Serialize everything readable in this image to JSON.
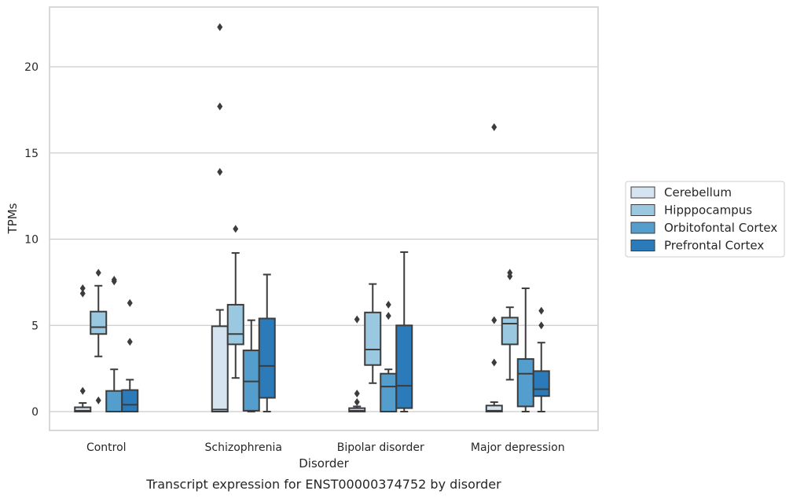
{
  "chart_data": {
    "type": "boxplot",
    "caption": "Transcript expression for ENST00000374752 by disorder",
    "xlabel": "Disorder",
    "ylabel": "TPMs",
    "ylim": [
      -1.1,
      23.5
    ],
    "yticks": [
      0,
      5,
      10,
      15,
      20
    ],
    "grid": "horizontal",
    "legend_position": "right",
    "categories": [
      "Control",
      "Schizophrenia",
      "Bipolar disorder",
      "Major depression"
    ],
    "series": [
      {
        "name": "Cerebellum",
        "color": "#d6e4f2",
        "boxes": [
          {
            "q1": 0.0,
            "median": 0.05,
            "q3": 0.25,
            "whisker_low": 0.0,
            "whisker_high": 0.5,
            "outliers": [
              1.2,
              6.85,
              7.15
            ]
          },
          {
            "q1": 0.0,
            "median": 0.12,
            "q3": 4.95,
            "whisker_low": 0.0,
            "whisker_high": 5.9,
            "outliers": [
              13.9,
              17.7,
              22.3
            ]
          },
          {
            "q1": 0.0,
            "median": 0.05,
            "q3": 0.2,
            "whisker_low": 0.0,
            "whisker_high": 0.3,
            "outliers": [
              0.55,
              1.05,
              5.35
            ]
          },
          {
            "q1": 0.0,
            "median": 0.05,
            "q3": 0.35,
            "whisker_low": 0.0,
            "whisker_high": 0.55,
            "outliers": [
              2.85,
              5.3,
              16.5
            ]
          }
        ]
      },
      {
        "name": "Hipppocampus",
        "color": "#9ac8e0",
        "boxes": [
          {
            "q1": 4.5,
            "median": 4.9,
            "q3": 5.8,
            "whisker_low": 3.2,
            "whisker_high": 7.3,
            "outliers": [
              0.65,
              8.05
            ]
          },
          {
            "q1": 3.9,
            "median": 4.5,
            "q3": 6.2,
            "whisker_low": 1.95,
            "whisker_high": 9.2,
            "outliers": [
              10.6
            ]
          },
          {
            "q1": 2.7,
            "median": 3.6,
            "q3": 5.75,
            "whisker_low": 1.65,
            "whisker_high": 7.4,
            "outliers": []
          },
          {
            "q1": 3.9,
            "median": 5.1,
            "q3": 5.45,
            "whisker_low": 1.85,
            "whisker_high": 6.05,
            "outliers": [
              7.85,
              8.05
            ]
          }
        ]
      },
      {
        "name": "Orbitofontal Cortex",
        "color": "#539ecd",
        "boxes": [
          {
            "q1": 0.0,
            "median": 0.0,
            "q3": 1.2,
            "whisker_low": 0.0,
            "whisker_high": 2.45,
            "outliers": [
              7.55,
              7.65
            ]
          },
          {
            "q1": 0.05,
            "median": 1.75,
            "q3": 3.55,
            "whisker_low": 0.0,
            "whisker_high": 5.3,
            "outliers": []
          },
          {
            "q1": 0.0,
            "median": 1.45,
            "q3": 2.2,
            "whisker_low": 0.0,
            "whisker_high": 2.45,
            "outliers": [
              5.55,
              6.2
            ]
          },
          {
            "q1": 0.3,
            "median": 2.2,
            "q3": 3.05,
            "whisker_low": 0.0,
            "whisker_high": 7.15,
            "outliers": []
          }
        ]
      },
      {
        "name": "Prefrontal Cortex",
        "color": "#2b7bba",
        "boxes": [
          {
            "q1": 0.0,
            "median": 0.4,
            "q3": 1.25,
            "whisker_low": 0.0,
            "whisker_high": 1.85,
            "outliers": [
              4.05,
              6.3
            ]
          },
          {
            "q1": 0.8,
            "median": 2.65,
            "q3": 5.4,
            "whisker_low": 0.0,
            "whisker_high": 7.95,
            "outliers": []
          },
          {
            "q1": 0.2,
            "median": 1.5,
            "q3": 5.0,
            "whisker_low": 0.0,
            "whisker_high": 9.25,
            "outliers": []
          },
          {
            "q1": 0.9,
            "median": 1.3,
            "q3": 2.35,
            "whisker_low": 0.0,
            "whisker_high": 4.0,
            "outliers": [
              5.0,
              5.85
            ]
          }
        ]
      }
    ]
  }
}
